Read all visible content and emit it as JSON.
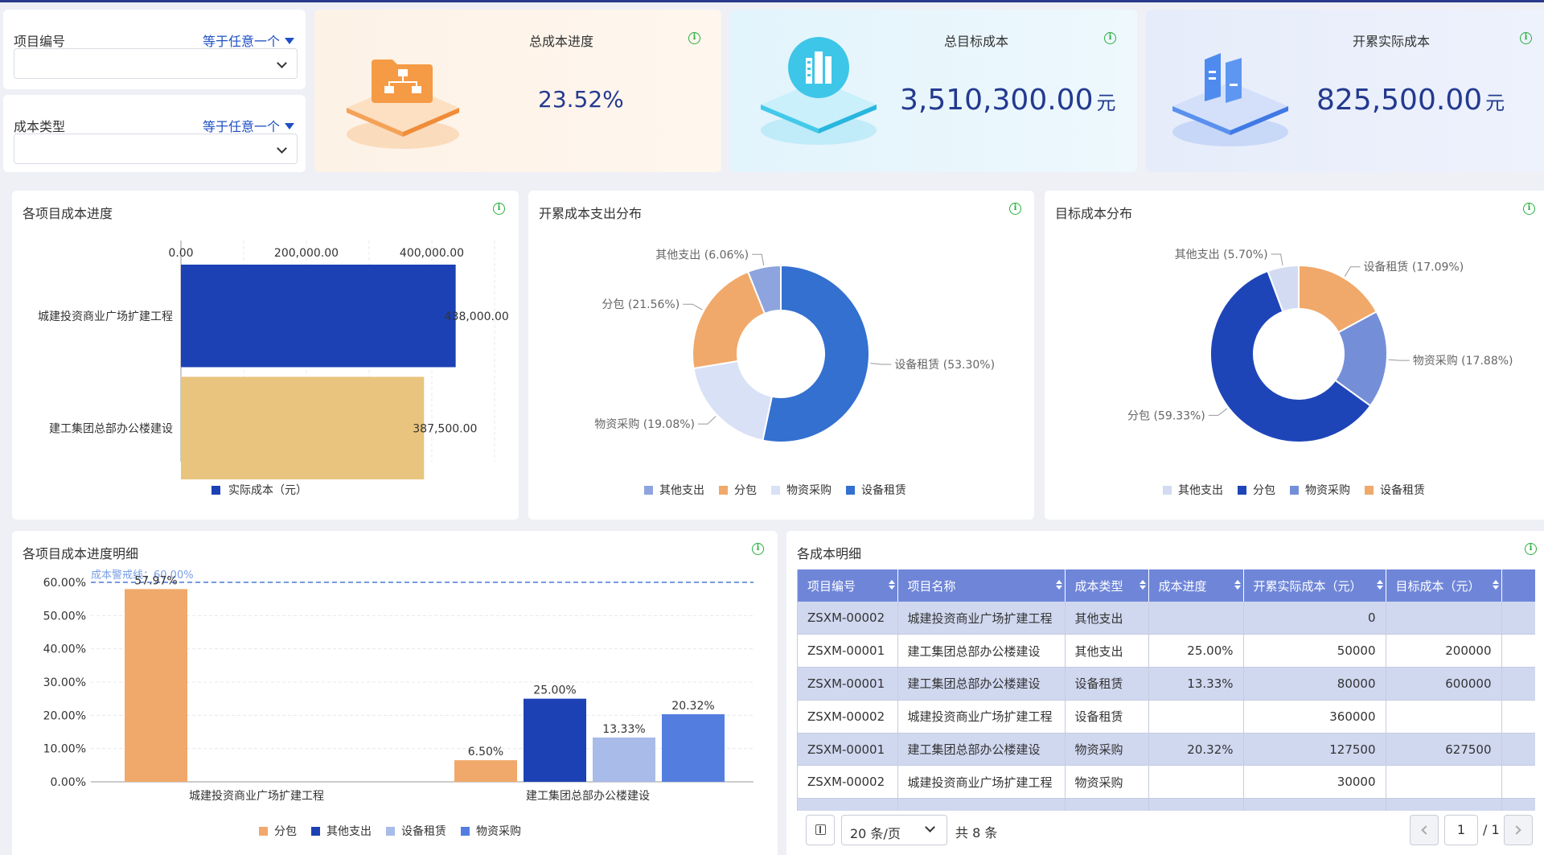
{
  "filters": [
    {
      "label": "项目编号",
      "operator": "等于任意一个",
      "value": ""
    },
    {
      "label": "成本类型",
      "operator": "等于任意一个",
      "value": ""
    }
  ],
  "kpis": [
    {
      "title": "总成本进度",
      "value": "23.52%",
      "unit": "",
      "icon": "org-chart-folder-icon",
      "color": "#f5a04a"
    },
    {
      "title": "总目标成本",
      "value": "3,510,300.00",
      "unit": "元",
      "icon": "buildings-icon",
      "color": "#3ec6e8"
    },
    {
      "title": "开累实际成本",
      "value": "825,500.00",
      "unit": "元",
      "icon": "documents-icon",
      "color": "#4f8bef"
    }
  ],
  "charts": {
    "hbar_title": "各项目成本进度",
    "pie1_title": "开累成本支出分布",
    "pie2_title": "目标成本分布",
    "vbar_title": "各项目成本进度明细",
    "table_title": "各成本明细"
  },
  "chart_data": [
    {
      "type": "bar",
      "orientation": "horizontal",
      "categories": [
        "城建投资商业广场扩建工程",
        "建工集团总部办公楼建设"
      ],
      "series": [
        {
          "name": "实际成本（元）",
          "values": [
            438000,
            387500
          ]
        }
      ],
      "value_labels": [
        "438,000.00",
        "387,500.00"
      ],
      "bar_colors": [
        "#1c41b4",
        "#e8c47e"
      ],
      "xticks": [
        "0.00",
        "200,000.00",
        "400,000.00"
      ],
      "xlim": [
        0,
        500000
      ],
      "legend": "bottom",
      "grid": true
    },
    {
      "type": "pie",
      "donut": true,
      "labels": [
        "其他支出",
        "分包",
        "物资采购",
        "设备租赁"
      ],
      "values": [
        6.06,
        21.56,
        19.08,
        53.3
      ],
      "slice_labels": [
        "其他支出 (6.06%)",
        "分包 (21.56%)",
        "物资采购 (19.08%)",
        "设备租赁 (53.30%)"
      ],
      "colors": [
        "#8da4df",
        "#f0a96a",
        "#d9e1f7",
        "#3370d0"
      ],
      "legend": "bottom"
    },
    {
      "type": "pie",
      "donut": true,
      "labels": [
        "其他支出",
        "分包",
        "物资采购",
        "设备租赁"
      ],
      "values": [
        5.7,
        59.33,
        17.88,
        17.09
      ],
      "slice_labels": [
        "其他支出 (5.70%)",
        "分包 (59.33%)",
        "物资采购 (17.88%)",
        "设备租赁 (17.09%)"
      ],
      "colors": [
        "#d3dbf3",
        "#1e45b8",
        "#748fd8",
        "#f0a96a"
      ],
      "legend": "bottom"
    },
    {
      "type": "bar",
      "orientation": "vertical",
      "categories": [
        "城建投资商业广场扩建工程",
        "建工集团总部办公楼建设"
      ],
      "series": [
        {
          "name": "分包",
          "values": [
            57.97,
            6.5
          ],
          "labels": [
            "57.97%",
            "6.50%"
          ],
          "color": "#f0a96a"
        },
        {
          "name": "其他支出",
          "values": [
            null,
            25.0
          ],
          "labels": [
            "",
            "25.00%"
          ],
          "color": "#1c41b4"
        },
        {
          "name": "设备租赁",
          "values": [
            null,
            13.33
          ],
          "labels": [
            "",
            "13.33%"
          ],
          "color": "#a9bbe9"
        },
        {
          "name": "物资采购",
          "values": [
            null,
            20.32
          ],
          "labels": [
            "",
            "20.32%"
          ],
          "color": "#537ee0"
        }
      ],
      "yticks": [
        "0.00%",
        "10.00%",
        "20.00%",
        "30.00%",
        "40.00%",
        "50.00%",
        "60.00%"
      ],
      "ylim": [
        0,
        60
      ],
      "threshold": {
        "value": 60,
        "label": "成本警戒线：60.00%"
      },
      "legend": "bottom",
      "grid": true
    }
  ],
  "table": {
    "columns": [
      "项目编号",
      "项目名称",
      "成本类型",
      "成本进度",
      "开累实际成本（元）",
      "目标成本（元）"
    ],
    "rows": [
      [
        "ZSXM-00002",
        "城建投资商业广场扩建工程",
        "其他支出",
        "",
        "0",
        ""
      ],
      [
        "ZSXM-00001",
        "建工集团总部办公楼建设",
        "其他支出",
        "25.00%",
        "50000",
        "200000"
      ],
      [
        "ZSXM-00001",
        "建工集团总部办公楼建设",
        "设备租赁",
        "13.33%",
        "80000",
        "600000"
      ],
      [
        "ZSXM-00002",
        "城建投资商业广场扩建工程",
        "设备租赁",
        "",
        "360000",
        ""
      ],
      [
        "ZSXM-00001",
        "建工集团总部办公楼建设",
        "物资采购",
        "20.32%",
        "127500",
        "627500"
      ],
      [
        "ZSXM-00002",
        "城建投资商业广场扩建工程",
        "物资采购",
        "",
        "30000",
        ""
      ],
      [
        "",
        "",
        "",
        "",
        "",
        ""
      ]
    ]
  },
  "pager": {
    "page_size": "20 条/页",
    "total": "共 8 条",
    "current": "1",
    "total_pages": "/ 1"
  }
}
